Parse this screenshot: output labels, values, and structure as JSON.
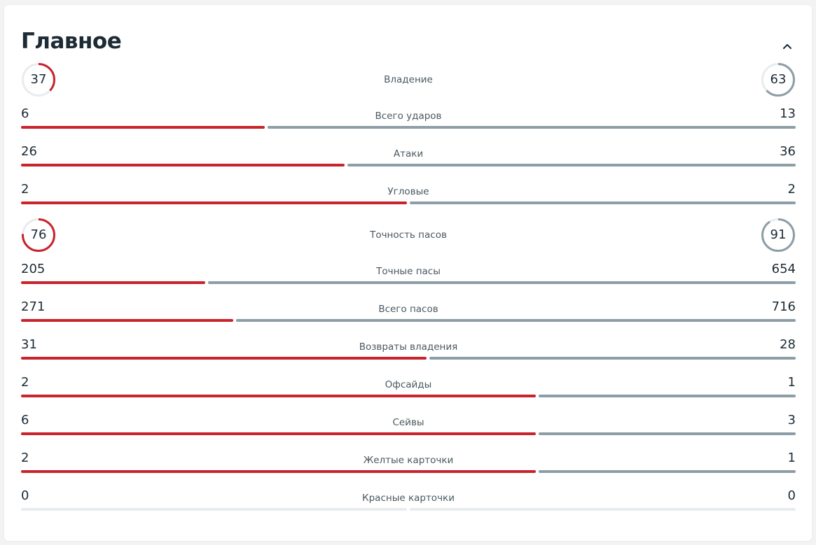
{
  "section": {
    "title": "Главное"
  },
  "colors": {
    "home": "#c9232c",
    "away": "#8e9ea6",
    "track": "#e9ecee"
  },
  "icons": {
    "collapse": "chevron-up-icon"
  },
  "rings": [
    {
      "label": "Владение",
      "home": "37",
      "away": "63"
    },
    {
      "label": "Точность пасов",
      "home": "76",
      "away": "91"
    }
  ],
  "stats": [
    {
      "label": "Всего ударов",
      "home": "6",
      "away": "13"
    },
    {
      "label": "Атаки",
      "home": "26",
      "away": "36"
    },
    {
      "label": "Угловые",
      "home": "2",
      "away": "2"
    },
    {
      "label": "Точные пасы",
      "home": "205",
      "away": "654"
    },
    {
      "label": "Всего пасов",
      "home": "271",
      "away": "716"
    },
    {
      "label": "Возвраты владения",
      "home": "31",
      "away": "28"
    },
    {
      "label": "Офсайды",
      "home": "2",
      "away": "1"
    },
    {
      "label": "Сейвы",
      "home": "6",
      "away": "3"
    },
    {
      "label": "Желтые карточки",
      "home": "2",
      "away": "1"
    },
    {
      "label": "Красные карточки",
      "home": "0",
      "away": "0"
    }
  ]
}
